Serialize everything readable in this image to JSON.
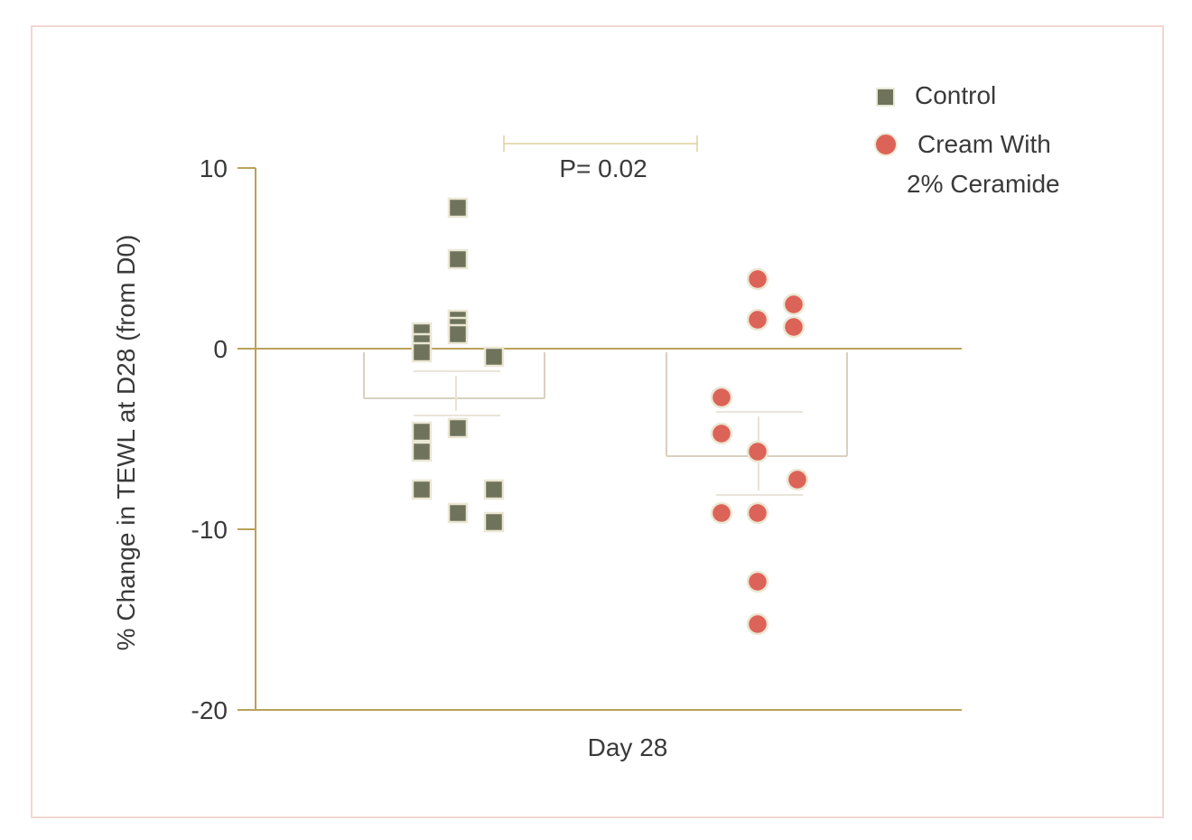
{
  "chart_data": {
    "type": "scatter",
    "title": "",
    "xlabel": "Day 28",
    "ylabel": "% Change in TEWL at D28 (from D0)",
    "ylim": [
      -20,
      10
    ],
    "yticks": [
      10,
      0,
      -10,
      -20
    ],
    "ytick_labels": [
      "10",
      "0",
      "-10",
      "-20"
    ],
    "grid": false,
    "legend_position": "top-right",
    "annotation": "P= 0.02",
    "categories": [
      "Day 28"
    ],
    "series": [
      {
        "name": "Control",
        "marker": "square",
        "color": "#6f735b",
        "values": [
          7.8,
          4.95,
          1.6,
          1.2,
          0.8,
          0.9,
          0.3,
          -0.2,
          -0.45,
          -4.4,
          -4.6,
          -5.7,
          -7.8,
          -7.8,
          -9.1,
          -9.6
        ],
        "x_offsets": [
          0,
          0,
          0,
          0,
          0,
          -1,
          -1,
          -1,
          1,
          0,
          -1,
          -1,
          -1,
          1,
          0,
          1
        ],
        "mean": -2.75,
        "sd_upper": -1.25,
        "sd_lower": -3.7
      },
      {
        "name": "Cream With 2% Ceramide",
        "marker": "circle",
        "color": "#dc6358",
        "values": [
          3.85,
          2.45,
          1.6,
          1.2,
          -2.7,
          -4.7,
          -5.7,
          -7.25,
          -9.1,
          -9.1,
          -12.9,
          -15.25
        ],
        "x_offsets": [
          0,
          1,
          0,
          1,
          -1,
          -1,
          0,
          1.1,
          -1,
          0,
          0,
          0
        ],
        "mean": -5.95,
        "sd_upper": -3.5,
        "sd_lower": -8.1
      }
    ]
  },
  "legend": {
    "items": [
      {
        "label": "Control",
        "marker": "square-icon"
      },
      {
        "label_line1": "Cream With",
        "label_line2": "2% Ceramide",
        "marker": "circle-icon"
      }
    ]
  },
  "axes": {
    "y_ticks": [
      "10",
      "0",
      "-10",
      "-20"
    ],
    "y_label": "% Change in TEWL at D28 (from D0)",
    "x_label": "Day 28"
  },
  "significance": {
    "label": "P= 0.02"
  },
  "colors": {
    "axis": "#b9a25a",
    "control": "#6f735b",
    "cream": "#dc6358",
    "marker_border": "#ebe7d4",
    "bracket": "#d9d0c0",
    "frame": "#f3d6d2",
    "sig_line": "#e0cf9e"
  }
}
